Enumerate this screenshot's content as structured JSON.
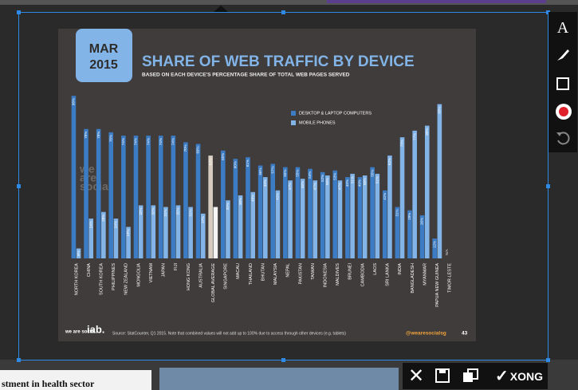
{
  "screen": {
    "bottom_left_text": "stment in health sector",
    "confirm_label": "XONG"
  },
  "chart_data": {
    "type": "bar",
    "badge": {
      "month": "MAR",
      "year": "2015"
    },
    "title": "SHARE OF WEB TRAFFIC BY DEVICE",
    "subtitle": "BASED ON EACH DEVICE'S PERCENTAGE SHARE OF TOTAL WEB PAGES SERVED",
    "categories": [
      "NORTH KOREA",
      "CHINA",
      "SOUTH KOREA",
      "PHILIPPINES",
      "NEW ZEALAND",
      "MONGOLIA",
      "VIETNAM",
      "JAPAN",
      "FIJI",
      "HONG KONG",
      "AUSTRALIA",
      "GLOBAL AVERAGE",
      "SINGAPORE",
      "MACAU",
      "THAILAND",
      "BHUTAN",
      "MALAYSIA",
      "NEPAL",
      "PAKISTAN",
      "TAIWAN",
      "INDONESIA",
      "MALDIVES",
      "BRUNEI",
      "CAMBODIA",
      "LAOS",
      "SRI LANKA",
      "INDIA",
      "BANGLADESH",
      "MYANMAR",
      "PAPUA NEW GUINEA",
      "TIMOR-LESTE"
    ],
    "series": [
      {
        "name": "DESKTOP & LAPTOP COMPUTERS",
        "color": "#3b7cc4",
        "values": [
          98,
          78,
          78,
          76,
          74,
          74,
          74,
          74,
          74,
          70,
          69,
          62,
          65,
          60,
          61,
          56,
          57,
          55,
          55,
          54,
          52,
          53,
          49,
          49,
          55,
          41,
          31,
          29,
          26,
          12,
          null
        ],
        "value_labels": [
          "98%",
          "78%",
          "78%",
          "76%",
          "74%",
          "74%",
          "74%",
          "74%",
          "74%",
          "70%",
          "69%",
          "62%",
          "65%",
          "60%",
          "61%",
          "56%",
          "57%",
          "55%",
          "55%",
          "54%",
          "52%",
          "53%",
          "49%",
          "49%",
          "55%",
          "41%",
          "31%",
          "29%",
          "26%",
          "12%",
          "N/A"
        ]
      },
      {
        "name": "MOBILE PHONES",
        "color": "#82b4e8",
        "values": [
          6,
          24,
          28,
          24,
          19,
          32,
          32,
          31,
          32,
          31,
          27,
          31,
          35,
          38,
          40,
          49,
          41,
          47,
          48,
          47,
          50,
          47,
          51,
          50,
          51,
          62,
          73,
          77,
          80,
          93,
          null
        ],
        "value_labels": [
          "6%",
          "24%",
          "28%",
          "24%",
          "19%",
          "32%",
          "32%",
          "31%",
          "32%",
          "31%",
          "27%",
          "31%",
          "35%",
          "38%",
          "40%",
          "49%",
          "41%",
          "47%",
          "48%",
          "47%",
          "50%",
          "47%",
          "51%",
          "50%",
          "51%",
          "62%",
          "73%",
          "77%",
          "80%",
          "93%",
          null
        ]
      }
    ],
    "ylim": [
      0,
      100
    ],
    "highlight": {
      "category": 11,
      "colors": [
        "#d6ccbf",
        "#f4f4f4"
      ]
    },
    "watermark": [
      "we",
      "are",
      "social"
    ],
    "logos": [
      "we are social",
      "iab."
    ],
    "source": "Source: StatCounter, Q1 2015. Note that combined values will not add up to 100% due to access through other devices (e.g. tablets)",
    "handle": "@wearesocialsg",
    "page_number": "43"
  }
}
